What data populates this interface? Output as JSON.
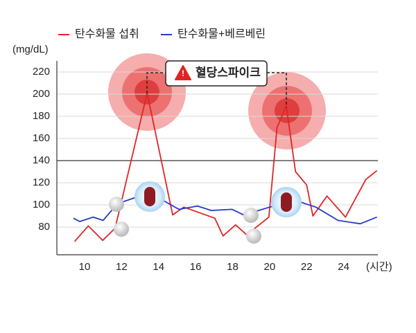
{
  "chart_data": {
    "type": "line",
    "y_label": "(mg/dL)",
    "x_label": "(시간)",
    "annotation": "혈당스파이크",
    "xlim": [
      8.5,
      25.85
    ],
    "xticks": [
      10,
      12,
      14,
      16,
      18,
      20,
      22,
      24
    ],
    "ylim": [
      55,
      230
    ],
    "yticks": [
      80,
      100,
      120,
      140,
      160,
      180,
      200,
      220
    ],
    "grid": true,
    "threshold": 140,
    "series": [
      {
        "name": "탄수화물 섭취",
        "color": "#e02424",
        "x": [
          9.46,
          10.2,
          10.98,
          11.65,
          13.38,
          14.76,
          15.36,
          17.04,
          17.48,
          18.16,
          18.76,
          19.96,
          20.4,
          20.9,
          21.4,
          22.0,
          22.34,
          23.1,
          24.1,
          25.2,
          25.8
        ],
        "values": [
          67,
          81,
          68,
          79,
          201,
          91,
          98,
          88,
          72,
          82,
          73,
          89,
          170,
          189,
          130,
          118,
          90,
          108,
          89,
          123,
          131
        ]
      },
      {
        "name": "탄수화물+베르베린",
        "color": "#2438c8",
        "x": [
          9.4,
          9.74,
          10.46,
          11.0,
          11.76,
          13.5,
          15.1,
          16.1,
          16.85,
          17.97,
          18.6,
          20.0,
          21.4,
          22.5,
          23.7,
          24.9,
          25.8
        ],
        "values": [
          88,
          85,
          89,
          86,
          101,
          111,
          96,
          99,
          95,
          96,
          91,
          98,
          104,
          98,
          86,
          83,
          89
        ]
      }
    ]
  }
}
